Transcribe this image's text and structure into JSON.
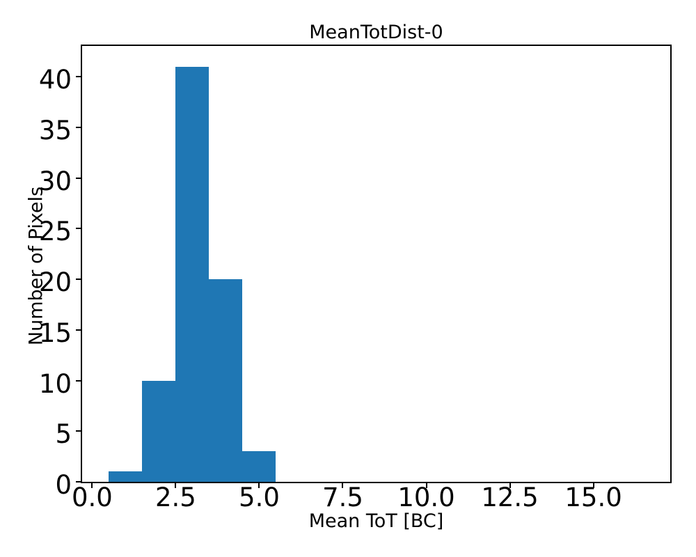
{
  "figure": {
    "background_color": "#ffffff",
    "text_color": "#000000"
  },
  "chart_data": {
    "type": "bar",
    "title": "MeanTotDist-0",
    "xlabel": "Mean ToT [BC]",
    "ylabel": "Number of Pixels",
    "bar_color": "#1f77b4",
    "axis_color": "#000000",
    "grid": false,
    "legend": null,
    "bin_edges": [
      0.5,
      1.5,
      2.5,
      3.5,
      4.5,
      5.5
    ],
    "counts": [
      1,
      10,
      41,
      20,
      3
    ],
    "xlim": [
      -0.3,
      17.3
    ],
    "ylim": [
      0,
      43.05
    ],
    "xticks": [
      {
        "value": 0,
        "label": "0.0"
      },
      {
        "value": 2.5,
        "label": "2.5"
      },
      {
        "value": 5,
        "label": "5.0"
      },
      {
        "value": 7.5,
        "label": "7.5"
      },
      {
        "value": 10,
        "label": "10.0"
      },
      {
        "value": 12.5,
        "label": "12.5"
      },
      {
        "value": 15,
        "label": "15.0"
      }
    ],
    "yticks": [
      {
        "value": 0,
        "label": "0"
      },
      {
        "value": 5,
        "label": "5"
      },
      {
        "value": 10,
        "label": "10"
      },
      {
        "value": 15,
        "label": "15"
      },
      {
        "value": 20,
        "label": "20"
      },
      {
        "value": 25,
        "label": "25"
      },
      {
        "value": 30,
        "label": "30"
      },
      {
        "value": 35,
        "label": "35"
      },
      {
        "value": 40,
        "label": "40"
      }
    ]
  }
}
